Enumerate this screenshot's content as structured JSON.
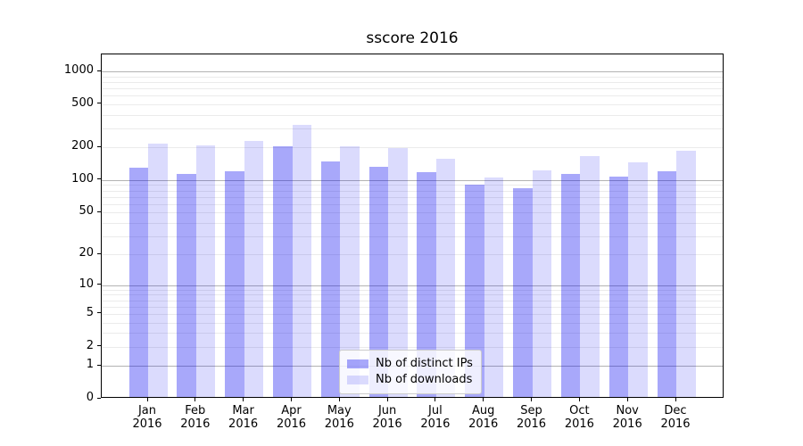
{
  "chart_data": {
    "type": "bar",
    "title": "sscore 2016",
    "categories": [
      "Jan 2016",
      "Feb 2016",
      "Mar 2016",
      "Apr 2016",
      "May 2016",
      "Jun 2016",
      "Jul 2016",
      "Aug 2016",
      "Sep 2016",
      "Oct 2016",
      "Nov 2016",
      "Dec 2016"
    ],
    "series": [
      {
        "name": "Nb of distinct IPs",
        "color": "rgba(0,0,240,0.34)",
        "values": [
          130,
          113,
          120,
          205,
          148,
          133,
          118,
          91,
          84,
          113,
          108,
          121
        ]
      },
      {
        "name": "Nb of downloads",
        "color": "rgba(0,0,240,0.14)",
        "values": [
          215,
          208,
          228,
          320,
          207,
          198,
          158,
          106,
          124,
          168,
          145,
          186
        ]
      }
    ],
    "xlabel": "",
    "ylabel": "",
    "y_scale": "log1p",
    "y_ticks": [
      0,
      1,
      2,
      5,
      10,
      20,
      50,
      100,
      200,
      500,
      1000
    ],
    "y_major_gridlines": [
      1,
      10,
      100,
      1000
    ],
    "ylim": [
      0,
      1430
    ],
    "grid": true,
    "legend_position": "lower center",
    "colors": {
      "major_grid": "#b3b3b3",
      "minor_grid": "#ebebeb",
      "axis": "#000000",
      "background": "#ffffff"
    }
  }
}
